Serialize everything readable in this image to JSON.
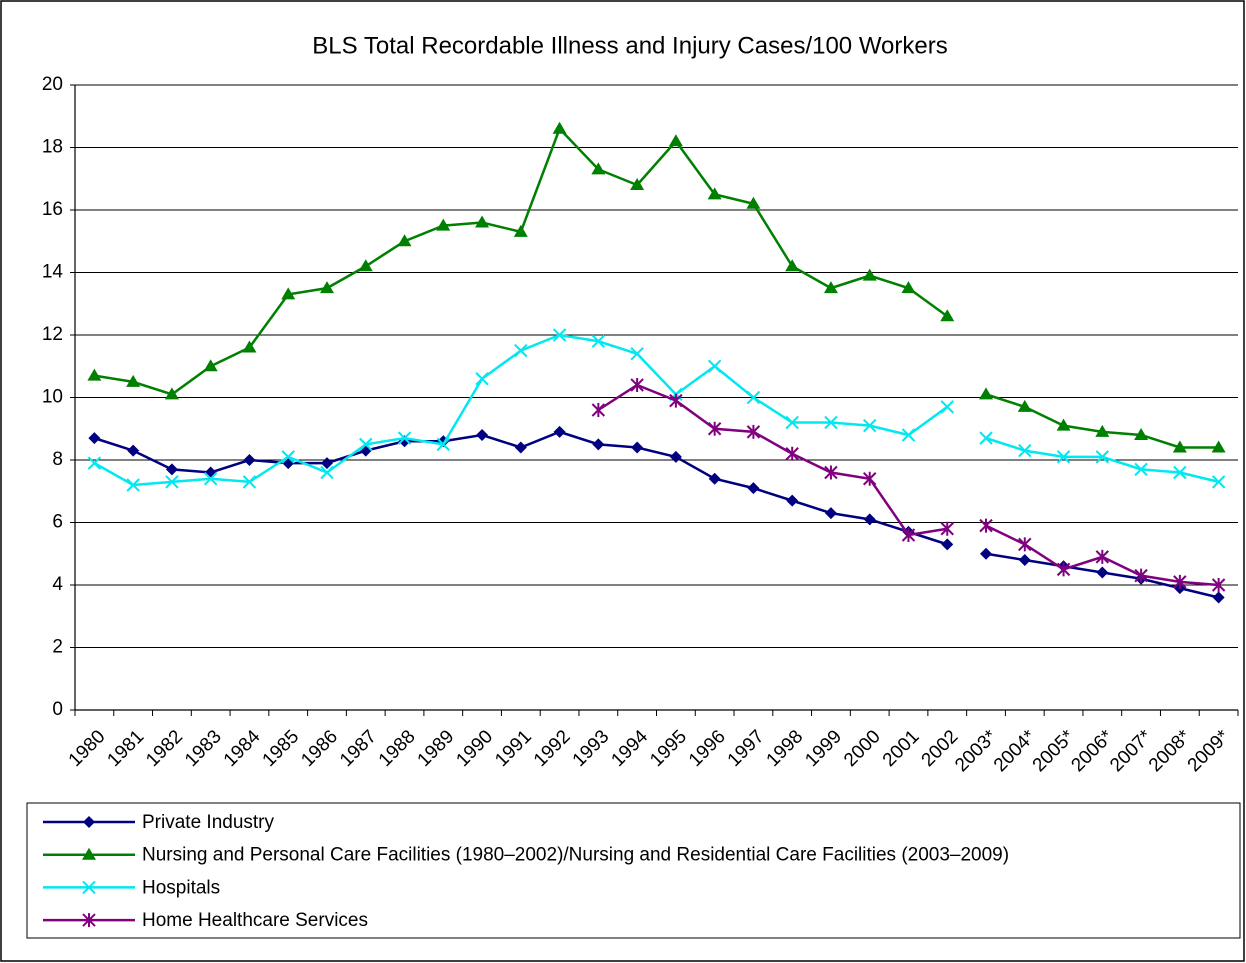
{
  "chart_data": {
    "type": "line",
    "title": "BLS Total Recordable Illness and Injury Cases/100 Workers",
    "categories": [
      "1980",
      "1981",
      "1982",
      "1983",
      "1984",
      "1985",
      "1986",
      "1987",
      "1988",
      "1989",
      "1990",
      "1991",
      "1992",
      "1993",
      "1994",
      "1995",
      "1996",
      "1997",
      "1998",
      "1999",
      "2000",
      "2001",
      "2002",
      "2003*",
      "2004*",
      "2005*",
      "2006*",
      "2007*",
      "2008*",
      "2009*"
    ],
    "series": [
      {
        "name": "Private Industry",
        "color": "#000080",
        "marker": "diamond",
        "values": [
          8.7,
          8.3,
          7.7,
          7.6,
          8.0,
          7.9,
          7.9,
          8.3,
          8.6,
          8.6,
          8.8,
          8.4,
          8.9,
          8.5,
          8.4,
          8.1,
          7.4,
          7.1,
          6.7,
          6.3,
          6.1,
          5.7,
          5.3,
          5.0,
          4.8,
          4.6,
          4.4,
          4.2,
          3.9,
          3.6
        ]
      },
      {
        "name": "Nursing and Personal Care Facilities (1980–2002)/Nursing and Residential Care Facilities (2003–2009)",
        "color": "#008000",
        "marker": "triangle",
        "values": [
          10.7,
          10.5,
          10.1,
          11.0,
          11.6,
          13.3,
          13.5,
          14.2,
          15.0,
          15.5,
          15.6,
          15.3,
          18.6,
          17.3,
          16.8,
          18.2,
          16.5,
          16.2,
          14.2,
          13.5,
          13.9,
          13.5,
          12.6,
          10.1,
          9.7,
          9.1,
          8.9,
          8.8,
          8.4,
          8.4
        ]
      },
      {
        "name": "Hospitals",
        "color": "#00e8f0",
        "marker": "x",
        "values": [
          7.9,
          7.2,
          7.3,
          7.4,
          7.3,
          8.1,
          7.6,
          8.5,
          8.7,
          8.5,
          10.6,
          11.5,
          12.0,
          11.8,
          11.4,
          10.1,
          11.0,
          10.0,
          9.2,
          9.2,
          9.1,
          8.8,
          9.7,
          8.7,
          8.3,
          8.1,
          8.1,
          7.7,
          7.6,
          7.3
        ]
      },
      {
        "name": "Home Healthcare Services",
        "color": "#800080",
        "marker": "asterisk",
        "values": [
          null,
          null,
          null,
          null,
          null,
          null,
          null,
          null,
          null,
          null,
          null,
          null,
          null,
          9.6,
          10.4,
          9.9,
          9.0,
          8.9,
          8.2,
          7.6,
          7.4,
          5.6,
          5.8,
          5.9,
          5.3,
          4.5,
          4.9,
          4.3,
          4.1,
          4.0
        ]
      }
    ],
    "break_at_starred_categories": true,
    "ylim": [
      0,
      20
    ],
    "yticks": [
      0,
      2,
      4,
      6,
      8,
      10,
      12,
      14,
      16,
      18,
      20
    ],
    "grid": true,
    "legend": "bottom"
  }
}
